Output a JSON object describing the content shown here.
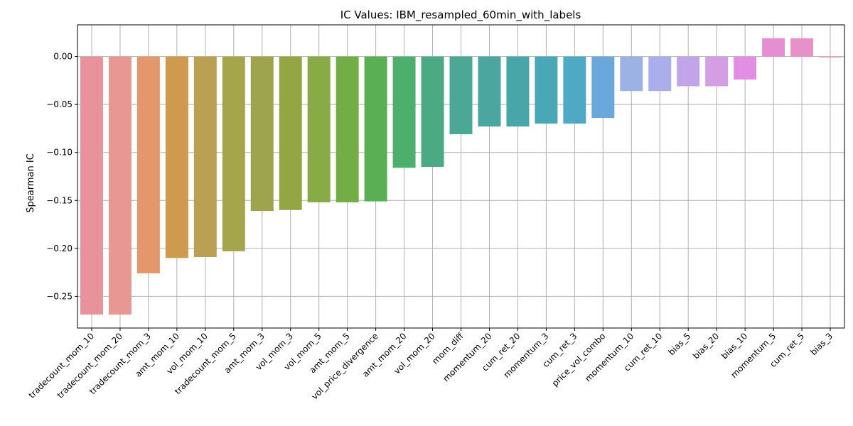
{
  "chart_data": {
    "type": "bar",
    "title": "IC Values: IBM_resampled_60min_with_labels",
    "xlabel": "",
    "ylabel": "Spearman IC",
    "ylim": [
      -0.283,
      0.033
    ],
    "yticks": [
      0.0,
      -0.05,
      -0.1,
      -0.15,
      -0.2,
      -0.25
    ],
    "ytick_labels": [
      "0.00",
      "−0.05",
      "−0.10",
      "−0.15",
      "−0.20",
      "−0.25"
    ],
    "grid": true,
    "categories": [
      "tradecount_mom_10",
      "tradecount_mom_20",
      "tradecount_mom_3",
      "amt_mom_10",
      "vol_mom_10",
      "tradecount_mom_5",
      "amt_mom_3",
      "vol_mom_3",
      "vol_mom_5",
      "amt_mom_5",
      "vol_price_divergence",
      "amt_mom_20",
      "vol_mom_20",
      "mom_diff",
      "momentum_20",
      "cum_ret_20",
      "momentum_3",
      "cum_ret_3",
      "price_vol_combo",
      "momentum_10",
      "cum_ret_10",
      "bias_5",
      "bias_20",
      "bias_10",
      "momentum_5",
      "cum_ret_5",
      "bias_3"
    ],
    "values": [
      -0.269,
      -0.269,
      -0.226,
      -0.21,
      -0.209,
      -0.203,
      -0.161,
      -0.16,
      -0.152,
      -0.152,
      -0.151,
      -0.116,
      -0.115,
      -0.081,
      -0.073,
      -0.073,
      -0.07,
      -0.07,
      -0.064,
      -0.036,
      -0.036,
      -0.031,
      -0.031,
      -0.024,
      0.019,
      0.019,
      -0.001
    ],
    "colors": [
      "#e8939c",
      "#e89893",
      "#e3976a",
      "#cd9a4e",
      "#b9a052",
      "#a5a54b",
      "#9ea44d",
      "#94a543",
      "#88aa47",
      "#72ad46",
      "#5aaf54",
      "#4daf6c",
      "#4baa84",
      "#4aa894",
      "#4aa69e",
      "#49a6a8",
      "#4aa7b5",
      "#50a9c4",
      "#6aa8dc",
      "#9db2e4",
      "#aaaeea",
      "#c2a4e8",
      "#d39ee4",
      "#e28ee2",
      "#e68ed2",
      "#e791c9",
      "#e993ba"
    ]
  }
}
